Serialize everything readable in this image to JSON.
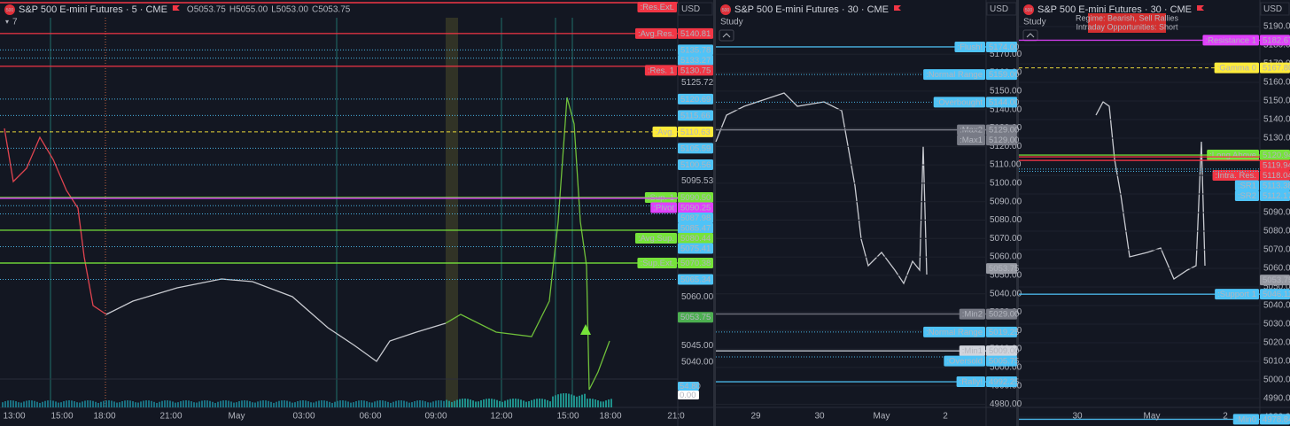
{
  "panels": [
    {
      "logo": "500",
      "title": "S&P 500 E-mini Futures · 5 · CME",
      "badge": "7",
      "currency": "USD",
      "ohlc": [
        {
          "k": "O",
          "v": "5053.75"
        },
        {
          "k": "H",
          "v": "5055.00"
        },
        {
          "k": "L",
          "v": "5053.00"
        },
        {
          "k": "C",
          "v": "5053.75"
        }
      ],
      "axis_labels": [
        "5125.72",
        "5095.53",
        "5060.00",
        "5045.00",
        "5040.00"
      ],
      "levels": [
        {
          "name": ":Res.Ext.",
          "color": "#f23645",
          "line": "solid"
        },
        {
          "price": "5140.81",
          "name": ":Avg.Res.",
          "color": "#f23645",
          "line": "solid"
        },
        {
          "price": "5135.78",
          "color": "#4fc3f7",
          "line": "dotted"
        },
        {
          "price": "5133.27",
          "color": "#4fc3f7",
          "line": "dotted"
        },
        {
          "price": "5130.75",
          "name": ":Res. 1",
          "color": "#f23645",
          "line": "solid"
        },
        {
          "price": "5120.69",
          "color": "#4fc3f7",
          "line": "dotted"
        },
        {
          "price": "5115.66",
          "color": "#4fc3f7",
          "line": "dotted"
        },
        {
          "price": "5110.63",
          "name": ":Avg.",
          "color": "#ffeb3b",
          "line": "dashed"
        },
        {
          "price": "5105.59",
          "color": "#4fc3f7",
          "line": "dotted"
        },
        {
          "price": "5100.56",
          "color": "#4fc3f7",
          "line": "dotted"
        },
        {
          "price": "5090.50",
          "name": ":Sup. 1",
          "color": "#76e33a",
          "line": "solid"
        },
        {
          "price": "5090.25",
          "name": ":Pivot",
          "color": "#e040fb",
          "line": "solid"
        },
        {
          "price": "5087.98",
          "color": "#4fc3f7",
          "line": "dotted"
        },
        {
          "price": "5085.47",
          "color": "#4fc3f7",
          "line": "dotted"
        },
        {
          "price": "5080.44",
          "name": ":Avg.Sup.",
          "color": "#76e33a",
          "line": "solid"
        },
        {
          "price": "5075.41",
          "color": "#4fc3f7",
          "line": "dotted"
        },
        {
          "price": "5070.38",
          "name": ":Sup.Ext.",
          "color": "#76e33a",
          "line": "solid"
        },
        {
          "price": "5065.34",
          "color": "#4fc3f7",
          "line": "dotted"
        }
      ],
      "current": {
        "value": "5053.75",
        "color": "#4caf50"
      },
      "volume_labels": [
        {
          "value": "54.80",
          "color": "#4fc3f7"
        },
        {
          "value": "0.00",
          "color": "#ffffff"
        }
      ],
      "time_labels": [
        "13:00",
        "15:00",
        "18:00",
        "21:00",
        "May",
        "03:00",
        "06:00",
        "09:00",
        "12:00",
        "15:00",
        "18:00",
        "21:0"
      ]
    },
    {
      "logo": "500",
      "title": "S&P 500 E-mini Futures · 30 · CME",
      "study": "Study",
      "currency": "USD",
      "axis_labels": [
        "5170.00",
        "5160.00",
        "5150.00",
        "5140.00",
        "5130.00",
        "5120.00",
        "5110.00",
        "5100.00",
        "5090.00",
        "5080.00",
        "5070.00",
        "5060.00",
        "5050.00",
        "5040.00",
        "5030.00",
        "5020.00",
        "5010.00",
        "5000.00",
        "4990.00",
        "4980.00"
      ],
      "levels": [
        {
          "price": "5174.00",
          "name": ":Flush!",
          "color": "#4fc3f7",
          "line": "solid"
        },
        {
          "price": "5159.00",
          "name": ":Normal Range",
          "color": "#4fc3f7",
          "line": "dotted"
        },
        {
          "price": "5144.00",
          "name": ":Overbought",
          "color": "#4fc3f7",
          "line": "dotted"
        },
        {
          "price": "5129.00",
          "name": ":Max2",
          "color": "#787b86",
          "line": "solid"
        },
        {
          "price": "5129.00",
          "name": ":Max1",
          "color": "#787b86",
          "line": "solid"
        },
        {
          "price": "5029.00",
          "name": ":Min2",
          "color": "#787b86",
          "line": "solid"
        },
        {
          "price": "5019.25",
          "name": ":Normal Range",
          "color": "#4fc3f7",
          "line": "dotted"
        },
        {
          "price": "5009.00",
          "name": ":Min1",
          "color": "#d1d4dc",
          "line": "solid"
        },
        {
          "price": "5005.75",
          "name": ":Oversold",
          "color": "#4fc3f7",
          "line": "dotted"
        },
        {
          "price": "4992.25",
          "name": ":Rally!",
          "color": "#4fc3f7",
          "line": "solid"
        }
      ],
      "current": {
        "value": "5053.75",
        "color": "#9598a1"
      },
      "time_labels": [
        "29",
        "30",
        "May",
        "2"
      ]
    },
    {
      "logo": "500",
      "title": "S&P 500 E-mini Futures · 30 · CME",
      "study": "Study",
      "currency": "USD",
      "regime": [
        "Regime: Bearish, Sell Rallies",
        "Intraday Opportunities: Short"
      ],
      "axis_labels": [
        "5190.00",
        "5180.00",
        "5170.00",
        "5160.00",
        "5150.00",
        "5140.00",
        "5130.00",
        "5120.00",
        "5110.00",
        "5100.00",
        "5090.00",
        "5080.00",
        "5070.00",
        "5060.00",
        "5050.00",
        "5040.00",
        "5030.00",
        "5020.00",
        "5010.00",
        "5000.00",
        "4990.00",
        "4980.00"
      ],
      "levels": [
        {
          "price": "5182.67",
          "name": ":Resistance 1",
          "color": "#e040fb",
          "line": "solid"
        },
        {
          "price": "5167.80",
          "name": ":Gamma 0",
          "color": "#ffeb3b",
          "line": "dashed"
        },
        {
          "price": "5120.94",
          "name": ":Long Above",
          "color": "#76e33a",
          "line": "solid"
        },
        {
          "price": "5119.94",
          "color": "#f23645",
          "line": "solid"
        },
        {
          "price": "5118.04",
          "name": ":Intra. Res.",
          "color": "#f23645",
          "line": "solid"
        },
        {
          "price": "5113.38",
          "name": ":SR1",
          "color": "#4fc3f7",
          "line": "dotted"
        },
        {
          "price": "5112.17",
          "name": ":SR2",
          "color": "#4fc3f7",
          "line": "dotted"
        },
        {
          "price": "5046.11",
          "name": ":Support 1",
          "color": "#4fc3f7",
          "line": "solid"
        },
        {
          "price": "4978.84",
          "name": ":Min0",
          "color": "#4fc3f7",
          "line": "solid"
        }
      ],
      "current": {
        "value": "5053.75",
        "color": "#9598a1"
      },
      "time_labels": [
        "30",
        "May",
        "2"
      ]
    }
  ]
}
